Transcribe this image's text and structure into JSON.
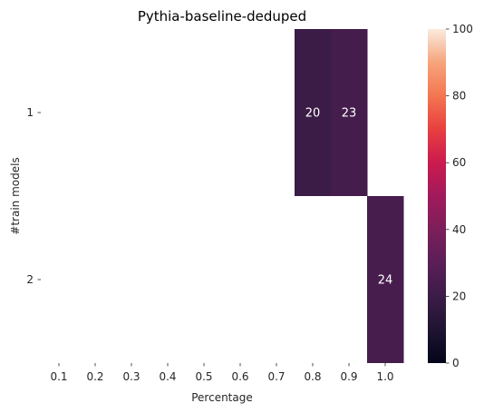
{
  "chart_data": {
    "type": "heatmap",
    "title": "Pythia-baseline-deduped",
    "xlabel": "Percentage",
    "ylabel": "#train models",
    "x_categories": [
      "0.1",
      "0.2",
      "0.3",
      "0.4",
      "0.5",
      "0.6",
      "0.7",
      "0.8",
      "0.9",
      "1.0"
    ],
    "y_categories": [
      "1",
      "2"
    ],
    "values": [
      [
        null,
        null,
        null,
        null,
        null,
        null,
        null,
        20,
        23,
        null
      ],
      [
        null,
        null,
        null,
        null,
        null,
        null,
        null,
        null,
        null,
        24
      ]
    ],
    "colorbar": {
      "range": [
        0,
        100
      ],
      "ticks": [
        "0",
        "20",
        "40",
        "60",
        "80",
        "100"
      ],
      "colormap": "rocket"
    }
  }
}
